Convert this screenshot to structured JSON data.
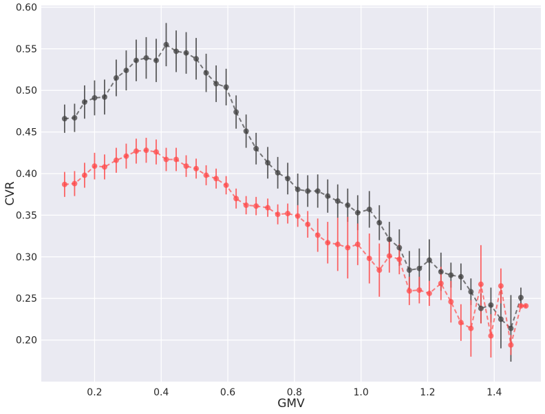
{
  "chart_data": {
    "type": "line",
    "title": "",
    "xlabel": "GMV",
    "ylabel": "CVR",
    "xlim": [
      0.04,
      1.54
    ],
    "ylim": [
      0.15,
      0.602
    ],
    "x_ticks": [
      0.2,
      0.4,
      0.6,
      0.8,
      1.0,
      1.2,
      1.4
    ],
    "x_tick_labels": [
      "0.2",
      "0.4",
      "0.6",
      "0.8",
      "1.0",
      "1.2",
      "1.4"
    ],
    "y_ticks": [
      0.2,
      0.25,
      0.3,
      0.35,
      0.4,
      0.45,
      0.5,
      0.55,
      0.6
    ],
    "y_tick_labels": [
      "0.20",
      "0.25",
      "0.30",
      "0.35",
      "0.40",
      "0.45",
      "0.50",
      "0.55",
      "0.60"
    ],
    "grid": true,
    "background": "#eaeaf2",
    "grid_color": "#ffffff",
    "series": [
      {
        "color": "#404040",
        "line_style": "dashed",
        "marker": "circle",
        "x": [
          0.11,
          0.14,
          0.17,
          0.2,
          0.23,
          0.265,
          0.295,
          0.325,
          0.355,
          0.385,
          0.415,
          0.445,
          0.475,
          0.505,
          0.535,
          0.565,
          0.595,
          0.625,
          0.655,
          0.685,
          0.72,
          0.75,
          0.78,
          0.81,
          0.84,
          0.87,
          0.9,
          0.93,
          0.96,
          0.99,
          1.025,
          1.055,
          1.085,
          1.115,
          1.145,
          1.175,
          1.205,
          1.24,
          1.27,
          1.3,
          1.33,
          1.36,
          1.39,
          1.42,
          1.45,
          1.48
        ],
        "y": [
          0.466,
          0.467,
          0.486,
          0.491,
          0.492,
          0.515,
          0.524,
          0.536,
          0.539,
          0.536,
          0.555,
          0.547,
          0.545,
          0.538,
          0.521,
          0.508,
          0.504,
          0.474,
          0.451,
          0.43,
          0.413,
          0.401,
          0.394,
          0.381,
          0.379,
          0.379,
          0.373,
          0.367,
          0.362,
          0.353,
          0.357,
          0.341,
          0.321,
          0.311,
          0.284,
          0.286,
          0.296,
          0.282,
          0.278,
          0.276,
          0.258,
          0.238,
          0.242,
          0.225,
          0.214,
          0.251
        ],
        "err": [
          0.017,
          0.017,
          0.02,
          0.021,
          0.021,
          0.022,
          0.024,
          0.025,
          0.025,
          0.026,
          0.026,
          0.025,
          0.025,
          0.025,
          0.023,
          0.022,
          0.022,
          0.02,
          0.02,
          0.019,
          0.019,
          0.019,
          0.019,
          0.019,
          0.019,
          0.02,
          0.02,
          0.02,
          0.02,
          0.021,
          0.022,
          0.021,
          0.021,
          0.022,
          0.023,
          0.024,
          0.025,
          0.023,
          0.015,
          0.016,
          0.016,
          0.018,
          0.021,
          0.035,
          0.04,
          0.012
        ]
      },
      {
        "color": "#ff4a4a",
        "line_style": "dashed",
        "marker": "circle",
        "x": [
          0.11,
          0.14,
          0.17,
          0.2,
          0.23,
          0.265,
          0.295,
          0.325,
          0.355,
          0.385,
          0.415,
          0.445,
          0.475,
          0.505,
          0.535,
          0.565,
          0.595,
          0.625,
          0.655,
          0.685,
          0.72,
          0.75,
          0.78,
          0.81,
          0.84,
          0.87,
          0.9,
          0.93,
          0.96,
          0.99,
          1.025,
          1.055,
          1.085,
          1.115,
          1.145,
          1.175,
          1.205,
          1.24,
          1.27,
          1.3,
          1.33,
          1.36,
          1.39,
          1.42,
          1.45,
          1.48,
          1.495
        ],
        "y": [
          0.387,
          0.388,
          0.398,
          0.409,
          0.408,
          0.416,
          0.421,
          0.427,
          0.428,
          0.426,
          0.417,
          0.417,
          0.409,
          0.406,
          0.398,
          0.394,
          0.386,
          0.37,
          0.362,
          0.361,
          0.359,
          0.351,
          0.352,
          0.349,
          0.339,
          0.326,
          0.317,
          0.315,
          0.311,
          0.315,
          0.298,
          0.284,
          0.301,
          0.297,
          0.259,
          0.26,
          0.256,
          0.268,
          0.246,
          0.221,
          0.214,
          0.267,
          0.205,
          0.265,
          0.194,
          0.241,
          0.241
        ],
        "err": [
          0.015,
          0.015,
          0.015,
          0.016,
          0.015,
          0.015,
          0.015,
          0.015,
          0.015,
          0.015,
          0.014,
          0.014,
          0.013,
          0.012,
          0.012,
          0.012,
          0.011,
          0.012,
          0.011,
          0.011,
          0.011,
          0.012,
          0.012,
          0.013,
          0.016,
          0.02,
          0.025,
          0.032,
          0.037,
          0.025,
          0.03,
          0.032,
          0.02,
          0.018,
          0.017,
          0.016,
          0.015,
          0.02,
          0.025,
          0.022,
          0.034,
          0.047,
          0.026,
          0.021,
          0.012,
          0.002,
          0.002
        ]
      }
    ]
  }
}
